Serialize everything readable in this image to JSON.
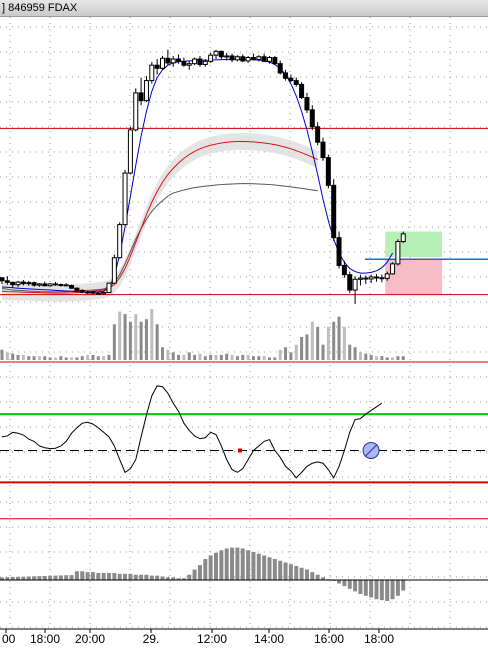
{
  "window": {
    "title": "] 846959 FDAX"
  },
  "time_axis": {
    "labels": [
      "00",
      "18:00",
      "20:00",
      "29.",
      "12:00",
      "14:00",
      "16:00",
      "18:00"
    ]
  },
  "colors": {
    "price_level_line": "#cc0000",
    "close_line": "#1f6fa8",
    "fast_ma": "#0000cc",
    "slow_ma": "#dd1111",
    "mid_ma": "#555555",
    "band_fill": "#d8d8d8",
    "target_zone": "#b6f0b6",
    "stop_zone": "#f7bcc4",
    "oscillator_upper": "#00cc00",
    "oscillator_lower": "#dd0000",
    "volume_bar": "#8a8a8a",
    "histogram_bar": "#8a8a8a"
  },
  "chart_data": [
    {
      "type": "candlestick",
      "panel": "price",
      "title": "",
      "ohlc": [
        [
          320,
          320,
          280,
          300
        ],
        [
          300,
          330,
          275,
          290
        ],
        [
          290,
          295,
          255,
          275
        ],
        [
          275,
          300,
          258,
          292
        ],
        [
          292,
          305,
          270,
          282
        ],
        [
          282,
          300,
          268,
          288
        ],
        [
          288,
          295,
          262,
          272
        ],
        [
          272,
          285,
          262,
          280
        ],
        [
          280,
          295,
          265,
          268
        ],
        [
          268,
          285,
          262,
          280
        ],
        [
          280,
          292,
          268,
          276
        ],
        [
          276,
          282,
          262,
          274
        ],
        [
          274,
          285,
          265,
          270
        ],
        [
          270,
          275,
          248,
          252
        ],
        [
          252,
          258,
          232,
          238
        ],
        [
          238,
          245,
          220,
          226
        ],
        [
          226,
          235,
          215,
          228
        ],
        [
          228,
          235,
          212,
          220
        ],
        [
          220,
          228,
          210,
          216
        ],
        [
          216,
          230,
          208,
          224
        ],
        [
          224,
          290,
          220,
          285
        ],
        [
          285,
          470,
          282,
          450
        ],
        [
          450,
          680,
          445,
          665
        ],
        [
          665,
          1020,
          660,
          1000
        ],
        [
          1000,
          1300,
          990,
          1280
        ],
        [
          1280,
          1550,
          1270,
          1520
        ],
        [
          1520,
          1620,
          1440,
          1470
        ],
        [
          1470,
          1630,
          1460,
          1600
        ],
        [
          1600,
          1720,
          1580,
          1700
        ],
        [
          1700,
          1740,
          1640,
          1680
        ],
        [
          1680,
          1760,
          1670,
          1745
        ],
        [
          1745,
          1800,
          1700,
          1715
        ],
        [
          1715,
          1760,
          1690,
          1740
        ],
        [
          1740,
          1770,
          1710,
          1725
        ],
        [
          1725,
          1750,
          1690,
          1700
        ],
        [
          1700,
          1730,
          1670,
          1710
        ],
        [
          1710,
          1750,
          1700,
          1740
        ],
        [
          1740,
          1760,
          1690,
          1705
        ],
        [
          1705,
          1740,
          1690,
          1725
        ],
        [
          1725,
          1780,
          1715,
          1765
        ],
        [
          1765,
          1800,
          1740,
          1790
        ],
        [
          1790,
          1795,
          1740,
          1755
        ],
        [
          1755,
          1780,
          1730,
          1760
        ],
        [
          1760,
          1775,
          1720,
          1735
        ],
        [
          1735,
          1765,
          1725,
          1755
        ],
        [
          1755,
          1770,
          1720,
          1728
        ],
        [
          1728,
          1760,
          1715,
          1750
        ],
        [
          1750,
          1775,
          1730,
          1738
        ],
        [
          1738,
          1765,
          1725,
          1755
        ],
        [
          1755,
          1775,
          1720,
          1725
        ],
        [
          1725,
          1760,
          1710,
          1750
        ],
        [
          1750,
          1760,
          1700,
          1710
        ],
        [
          1710,
          1730,
          1640,
          1650
        ],
        [
          1650,
          1670,
          1600,
          1615
        ],
        [
          1615,
          1640,
          1590,
          1600
        ],
        [
          1600,
          1620,
          1560,
          1575
        ],
        [
          1575,
          1590,
          1480,
          1490
        ],
        [
          1490,
          1520,
          1390,
          1410
        ],
        [
          1410,
          1440,
          1280,
          1300
        ],
        [
          1300,
          1330,
          1180,
          1200
        ],
        [
          1200,
          1230,
          1080,
          1100
        ],
        [
          1100,
          1120,
          900,
          920
        ],
        [
          920,
          960,
          560,
          580
        ],
        [
          580,
          620,
          380,
          400
        ],
        [
          400,
          430,
          320,
          340
        ],
        [
          340,
          360,
          220,
          240
        ],
        [
          240,
          330,
          150,
          310
        ],
        [
          310,
          340,
          270,
          318
        ],
        [
          318,
          335,
          280,
          312
        ],
        [
          312,
          340,
          285,
          325
        ],
        [
          325,
          345,
          295,
          320
        ],
        [
          320,
          340,
          290,
          316
        ],
        [
          316,
          360,
          300,
          345
        ],
        [
          345,
          420,
          340,
          410
        ],
        [
          410,
          570,
          400,
          555
        ],
        [
          555,
          620,
          545,
          605
        ]
      ],
      "moving_averages": [
        {
          "name": "",
          "values": [
            250,
            245,
            240,
            238,
            236,
            234,
            232,
            230,
            229,
            228,
            228,
            229,
            230,
            232,
            234,
            236,
            238,
            240,
            243,
            247,
            260,
            290,
            340,
            410,
            490,
            570,
            640,
            700,
            750,
            790,
            820,
            850,
            870,
            880,
            890,
            898,
            905,
            910,
            915,
            918,
            922,
            925,
            927,
            929,
            930,
            931,
            931,
            930,
            929,
            927,
            925,
            922,
            918,
            914,
            910,
            905,
            900,
            895,
            890,
            885
          ]
        },
        {
          "name": "",
          "values": [
            232,
            230,
            229,
            227,
            226,
            225,
            224,
            223,
            222,
            221,
            220,
            220,
            221,
            222,
            224,
            226,
            229,
            232,
            236,
            241,
            252,
            275,
            320,
            380,
            460,
            550,
            640,
            730,
            810,
            880,
            940,
            990,
            1030,
            1065,
            1095,
            1120,
            1140,
            1157,
            1170,
            1180,
            1188,
            1195,
            1200,
            1203,
            1205,
            1205,
            1204,
            1202,
            1199,
            1195,
            1190,
            1184,
            1176,
            1167,
            1157,
            1145,
            1132,
            1118,
            1103,
            1088
          ]
        },
        {
          "name": "",
          "values": [
            260,
            258,
            255,
            252,
            250,
            248,
            246,
            244,
            242,
            240,
            238,
            236,
            234,
            232,
            230,
            228,
            227,
            227,
            228,
            232,
            255,
            330,
            470,
            650,
            850,
            1050,
            1240,
            1400,
            1530,
            1620,
            1670,
            1700,
            1715,
            1722,
            1726,
            1728,
            1730,
            1731,
            1732,
            1733,
            1735,
            1736,
            1737,
            1738,
            1738,
            1738,
            1737,
            1735,
            1733,
            1730,
            1720,
            1705,
            1680,
            1640,
            1580,
            1500,
            1400,
            1280,
            1140,
            990,
            830,
            690,
            570,
            480,
            420,
            380,
            360,
            350,
            350,
            355,
            365,
            385,
            420,
            480
          ]
        }
      ],
      "price_levels": [
        1290,
        210
      ],
      "close_marker": 440,
      "target_zone": [
        455,
        620
      ],
      "stop_zone": [
        210,
        440
      ],
      "ylim": [
        130,
        2000
      ]
    },
    {
      "type": "bar",
      "panel": "volume",
      "title": "",
      "values": [
        8,
        6,
        5,
        4,
        4,
        3,
        3,
        3,
        3,
        2,
        2,
        3,
        2,
        2,
        2,
        3,
        4,
        4,
        3,
        3,
        4,
        28,
        38,
        36,
        30,
        36,
        30,
        32,
        40,
        28,
        10,
        8,
        6,
        4,
        4,
        6,
        4,
        5,
        3,
        4,
        4,
        4,
        5,
        4,
        3,
        4,
        4,
        3,
        3,
        3,
        2,
        2,
        8,
        10,
        6,
        12,
        18,
        20,
        30,
        26,
        12,
        26,
        30,
        34,
        26,
        12,
        10,
        6,
        5,
        4,
        3,
        3,
        2,
        2,
        3,
        3
      ],
      "ylim": [
        0,
        40
      ]
    },
    {
      "type": "line",
      "panel": "oscillator",
      "title": "",
      "values": [
        30,
        32,
        40,
        38,
        34,
        25,
        20,
        10,
        6,
        4,
        5,
        10,
        20,
        38,
        50,
        60,
        62,
        58,
        50,
        40,
        30,
        10,
        -20,
        -48,
        -40,
        -20,
        30,
        78,
        120,
        142,
        140,
        126,
        104,
        86,
        60,
        44,
        32,
        26,
        28,
        40,
        35,
        10,
        -20,
        -42,
        -48,
        -40,
        -20,
        0,
        10,
        20,
        24,
        0,
        -15,
        -35,
        -45,
        -60,
        -48,
        -35,
        -28,
        -25,
        -28,
        -42,
        -60,
        -35,
        0,
        40,
        68,
        70,
        80,
        88,
        96,
        104
      ],
      "level_lines": [
        80,
        -70,
        -150
      ],
      "midline": 0,
      "ylim": [
        -190,
        190
      ]
    },
    {
      "type": "bar",
      "panel": "histogram",
      "title": "",
      "values": [
        10,
        10,
        9,
        9,
        8,
        8,
        8,
        8,
        7,
        7,
        7,
        6,
        6,
        6,
        5,
        5,
        4,
        3,
        3,
        2,
        2,
        6,
        12,
        17,
        24,
        28,
        31,
        34,
        36,
        37,
        37,
        36,
        34,
        32,
        30,
        28,
        26,
        24,
        22,
        20,
        18,
        16,
        14,
        12,
        9,
        6,
        3,
        1,
        -1,
        -4,
        -7,
        -10,
        -13,
        -16,
        -18,
        -20,
        -22,
        -23,
        -24,
        -22,
        -18,
        -12
      ],
      "ylim": [
        -40,
        40
      ]
    }
  ]
}
